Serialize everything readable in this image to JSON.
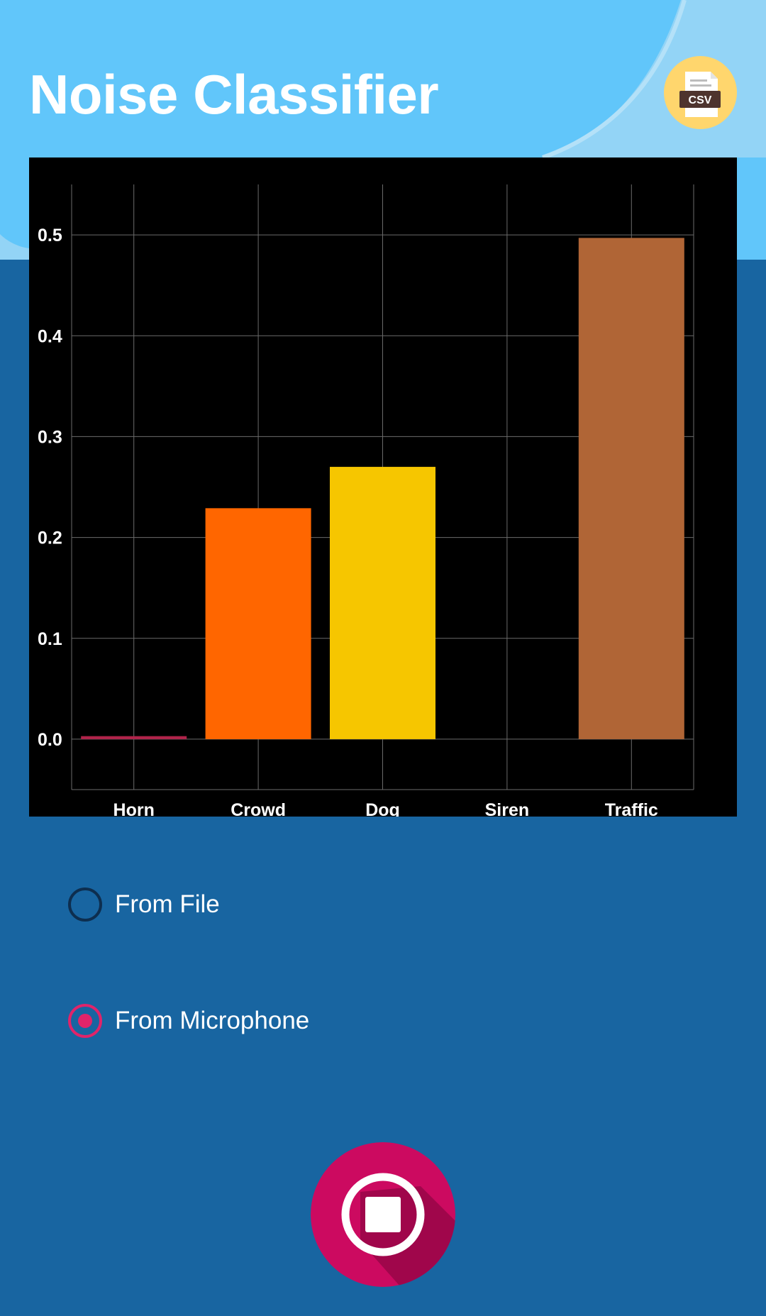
{
  "app": {
    "title": "Noise Classifier",
    "export_label": "CSV"
  },
  "chart_data": {
    "type": "bar",
    "categories": [
      "Horn",
      "Crowd",
      "Dog",
      "Siren",
      "Traffic"
    ],
    "values": [
      0.003,
      0.229,
      0.27,
      0.0,
      0.497
    ],
    "colors": [
      "#b0234a",
      "#ff6600",
      "#f6c600",
      "#8e8e8e",
      "#b06536"
    ],
    "yticks": [
      "0.0",
      "0.1",
      "0.2",
      "0.3",
      "0.4",
      "0.5"
    ],
    "ylim": [
      -0.05,
      0.55
    ],
    "grid": true,
    "legend": "none"
  },
  "source": {
    "options": [
      {
        "label": "From File",
        "selected": false
      },
      {
        "label": "From Microphone",
        "selected": true
      }
    ]
  },
  "colors": {
    "header": "#61c6fa",
    "background": "#1865a1",
    "accent": "#e0246a",
    "fab": "#cc0a60"
  },
  "icons": {
    "export": "csv-file-icon",
    "record": "stop-icon"
  }
}
